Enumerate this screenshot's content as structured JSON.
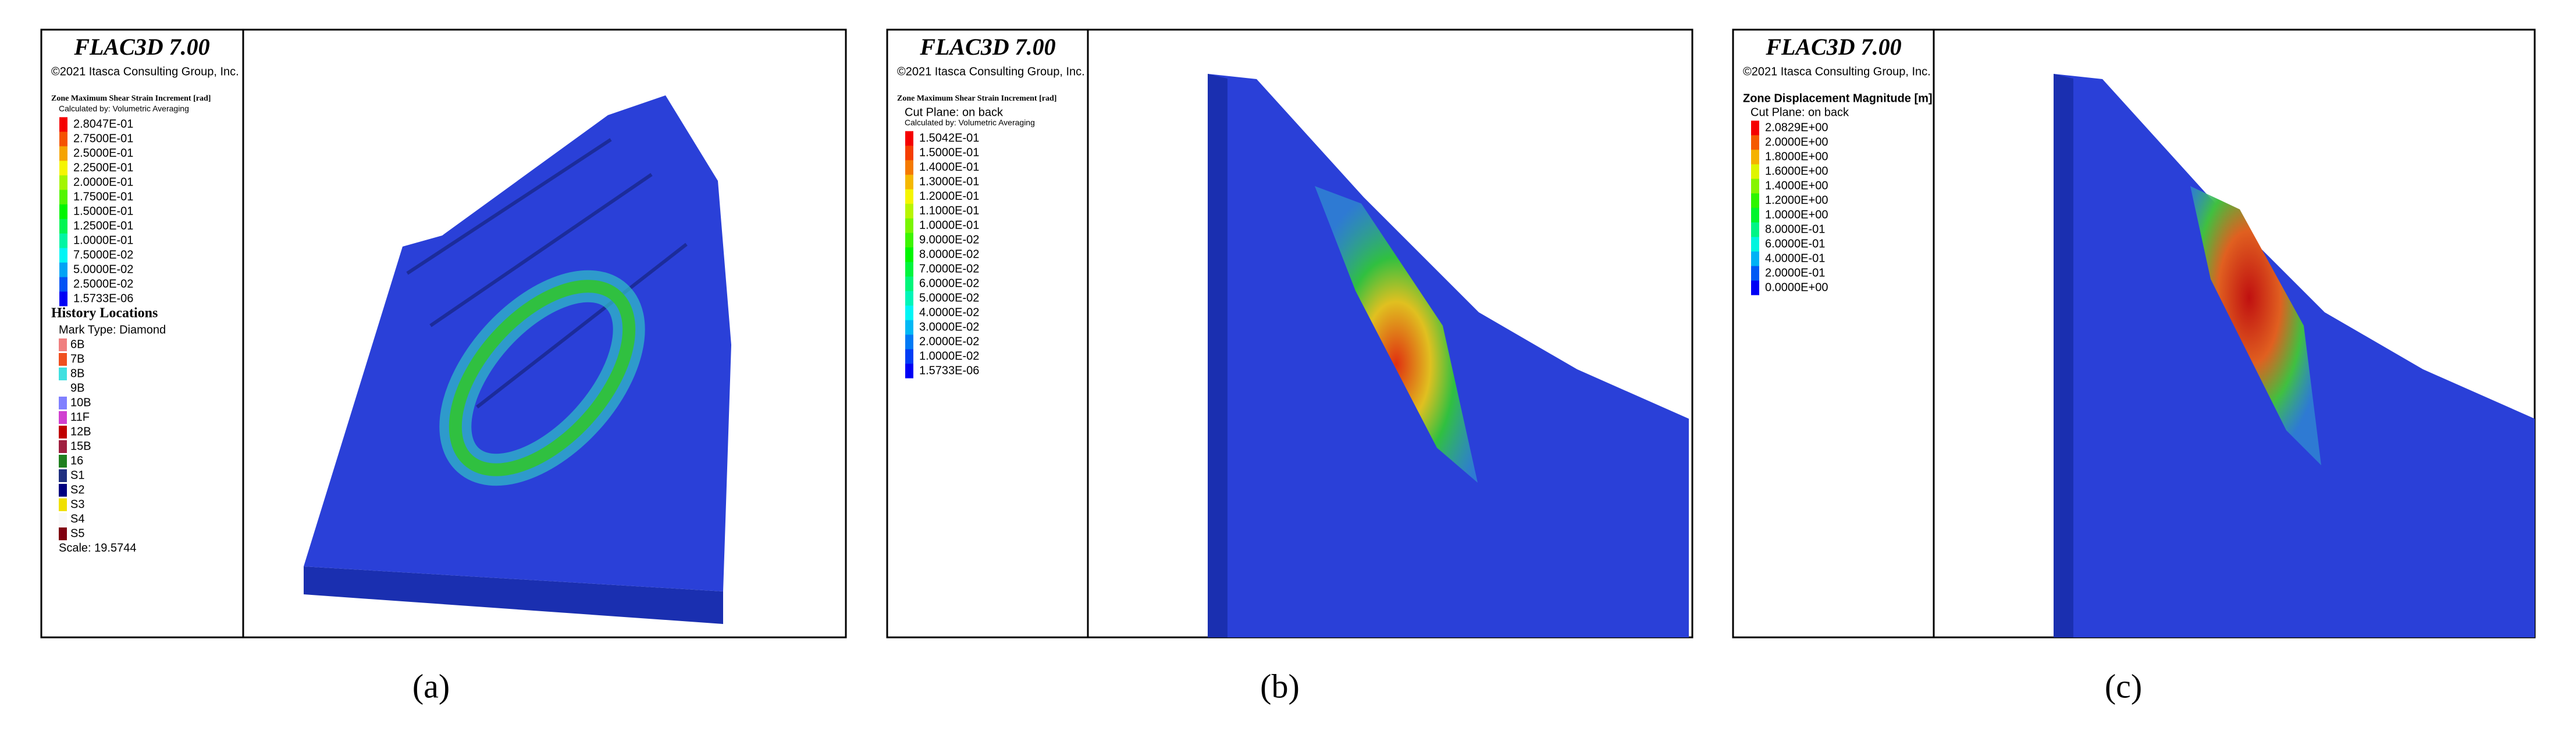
{
  "panels": [
    {
      "caption": "(a)",
      "title": "FLAC3D 7.00",
      "copyright": "©2021 Itasca Consulting Group, Inc.",
      "legend": {
        "heading": "Zone Maximum Shear Strain Increment [rad]",
        "lines": [
          "Calculated by: Volumetric Averaging"
        ],
        "scale": [
          "2.8047E-01",
          "2.7500E-01",
          "2.5000E-01",
          "2.2500E-01",
          "2.0000E-01",
          "1.7500E-01",
          "1.5000E-01",
          "1.2500E-01",
          "1.0000E-01",
          "7.5000E-02",
          "5.0000E-02",
          "2.5000E-02",
          "1.5733E-06"
        ]
      },
      "history": {
        "heading": "History Locations",
        "mark_type": "Mark Type: Diamond",
        "items": [
          "6B",
          "7B",
          "8B",
          "9B",
          "10B",
          "11F",
          "12B",
          "15B",
          "16",
          "S1",
          "S2",
          "S3",
          "S4",
          "S5"
        ],
        "scale": "Scale: 19.5744"
      }
    },
    {
      "caption": "(b)",
      "title": "FLAC3D 7.00",
      "copyright": "©2021 Itasca Consulting Group, Inc.",
      "legend": {
        "heading": "Zone Maximum Shear Strain Increment [rad]",
        "lines": [
          "Cut Plane: on back",
          "Calculated by: Volumetric Averaging"
        ],
        "scale": [
          "1.5042E-01",
          "1.5000E-01",
          "1.4000E-01",
          "1.3000E-01",
          "1.2000E-01",
          "1.1000E-01",
          "1.0000E-01",
          "9.0000E-02",
          "8.0000E-02",
          "7.0000E-02",
          "6.0000E-02",
          "5.0000E-02",
          "4.0000E-02",
          "3.0000E-02",
          "2.0000E-02",
          "1.0000E-02",
          "1.5733E-06"
        ]
      }
    },
    {
      "caption": "(c)",
      "title": "FLAC3D 7.00",
      "copyright": "©2021 Itasca Consulting Group, Inc.",
      "legend": {
        "heading": "Zone Displacement Magnitude [m]",
        "lines": [
          "Cut Plane: on back"
        ],
        "scale": [
          "2.0829E+00",
          "2.0000E+00",
          "1.8000E+00",
          "1.6000E+00",
          "1.4000E+00",
          "1.2000E+00",
          "1.0000E+00",
          "8.0000E-01",
          "6.0000E-01",
          "4.0000E-01",
          "2.0000E-01",
          "0.0000E+00"
        ]
      }
    }
  ]
}
